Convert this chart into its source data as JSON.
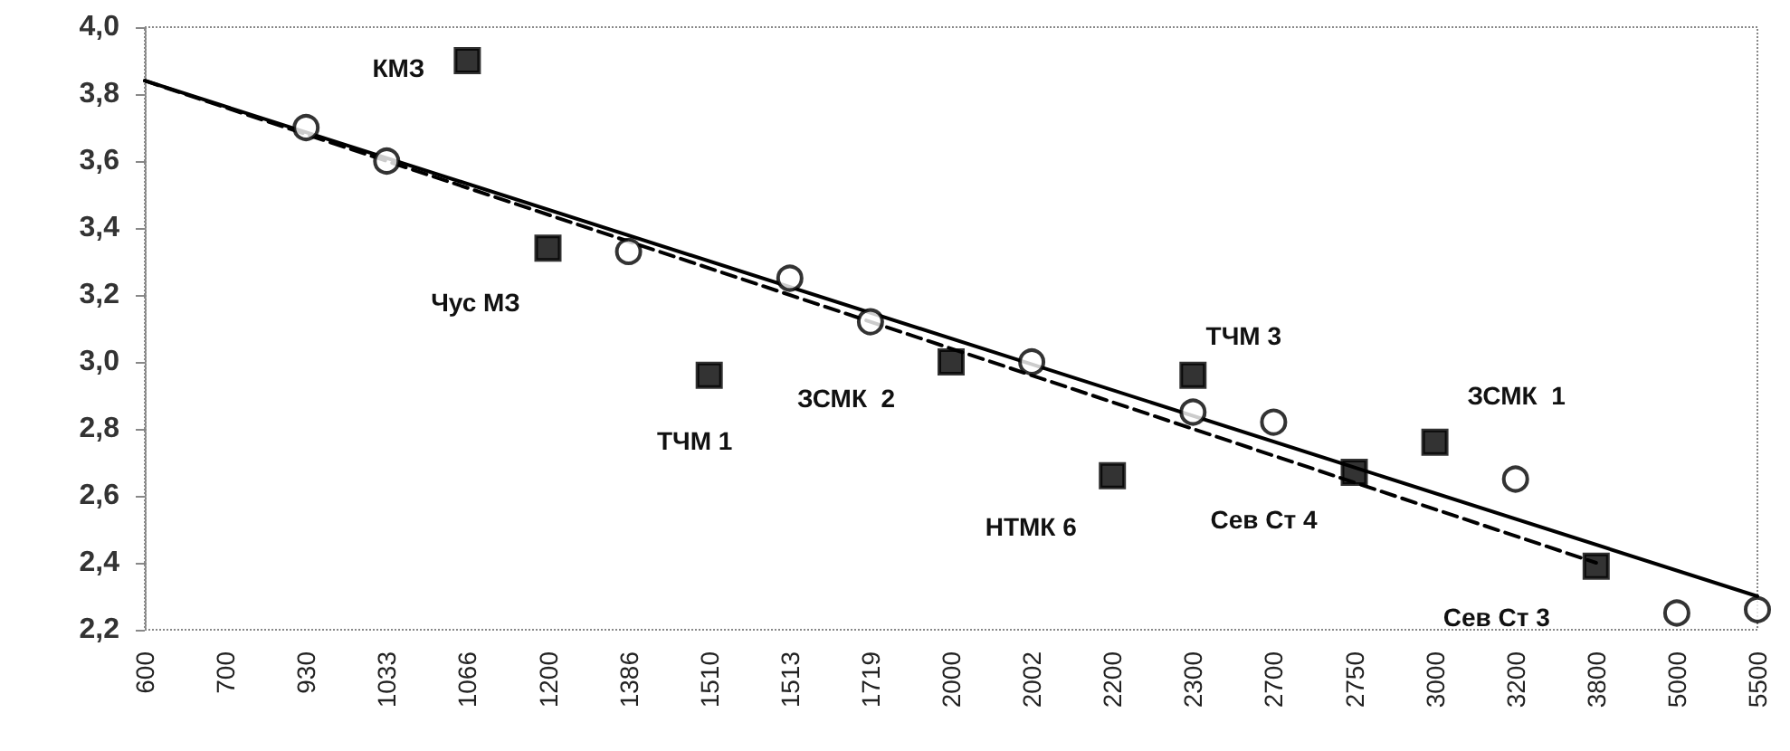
{
  "chart_data": {
    "type": "scatter",
    "categories": [
      "600",
      "700",
      "930",
      "1033",
      "1066",
      "1200",
      "1386",
      "1510",
      "1513",
      "1719",
      "2000",
      "2002",
      "2200",
      "2300",
      "2700",
      "2750",
      "3000",
      "3200",
      "3800",
      "5000",
      "5500"
    ],
    "series": [
      {
        "marker": "circle",
        "color": "#000000",
        "values": [
          null,
          null,
          3.7,
          3.6,
          null,
          null,
          3.33,
          null,
          3.25,
          3.12,
          null,
          3.0,
          null,
          2.85,
          2.82,
          null,
          null,
          2.65,
          null,
          2.25,
          2.26
        ]
      },
      {
        "marker": "square",
        "color": "#000000",
        "values": [
          null,
          null,
          null,
          null,
          3.9,
          3.34,
          null,
          2.96,
          null,
          null,
          3.0,
          null,
          2.66,
          2.96,
          null,
          2.67,
          2.76,
          null,
          2.39,
          null,
          null
        ]
      },
      {
        "type": "line",
        "marker": "none",
        "line_style": "solid",
        "color": "#000000",
        "values": [
          3.84,
          null,
          null,
          null,
          null,
          null,
          null,
          null,
          null,
          null,
          null,
          null,
          null,
          null,
          null,
          null,
          null,
          null,
          null,
          null,
          2.3
        ]
      },
      {
        "type": "line",
        "marker": "none",
        "line_style": "dashed",
        "color": "#000000",
        "values": [
          3.84,
          null,
          null,
          null,
          null,
          null,
          null,
          null,
          null,
          null,
          null,
          null,
          null,
          null,
          null,
          null,
          null,
          null,
          2.4,
          null,
          null
        ]
      }
    ],
    "ylim": [
      2.2,
      4.0
    ],
    "yticks": [
      {
        "value": 2.2,
        "label": "2,2"
      },
      {
        "value": 2.4,
        "label": "2,4"
      },
      {
        "value": 2.6,
        "label": "2,6"
      },
      {
        "value": 2.8,
        "label": "2,8"
      },
      {
        "value": 3.0,
        "label": "3,0"
      },
      {
        "value": 3.2,
        "label": "3,2"
      },
      {
        "value": 3.4,
        "label": "3,4"
      },
      {
        "value": 3.6,
        "label": "3,6"
      },
      {
        "value": 3.8,
        "label": "3,8"
      },
      {
        "value": 4.0,
        "label": "4,0"
      }
    ],
    "grid": false,
    "annotations": [
      {
        "text": "КМЗ",
        "x": "1066",
        "y": 3.9
      },
      {
        "text": "Чус МЗ",
        "x": "1200",
        "y": 3.34
      },
      {
        "text": "ТЧМ 1",
        "x": "1510",
        "y": 2.96
      },
      {
        "text": "ЗСМК  2",
        "x": "2000",
        "y": 3.0
      },
      {
        "text": "НТМК 6",
        "x": "2200",
        "y": 2.66
      },
      {
        "text": "ТЧМ 3",
        "x": "2300",
        "y": 2.96
      },
      {
        "text": "Сев Ст 4",
        "x": "2750",
        "y": 2.67
      },
      {
        "text": "ЗСМК  1",
        "x": "3000",
        "y": 2.76
      },
      {
        "text": "Сев Ст 3",
        "x": "3800",
        "y": 2.39
      }
    ]
  }
}
